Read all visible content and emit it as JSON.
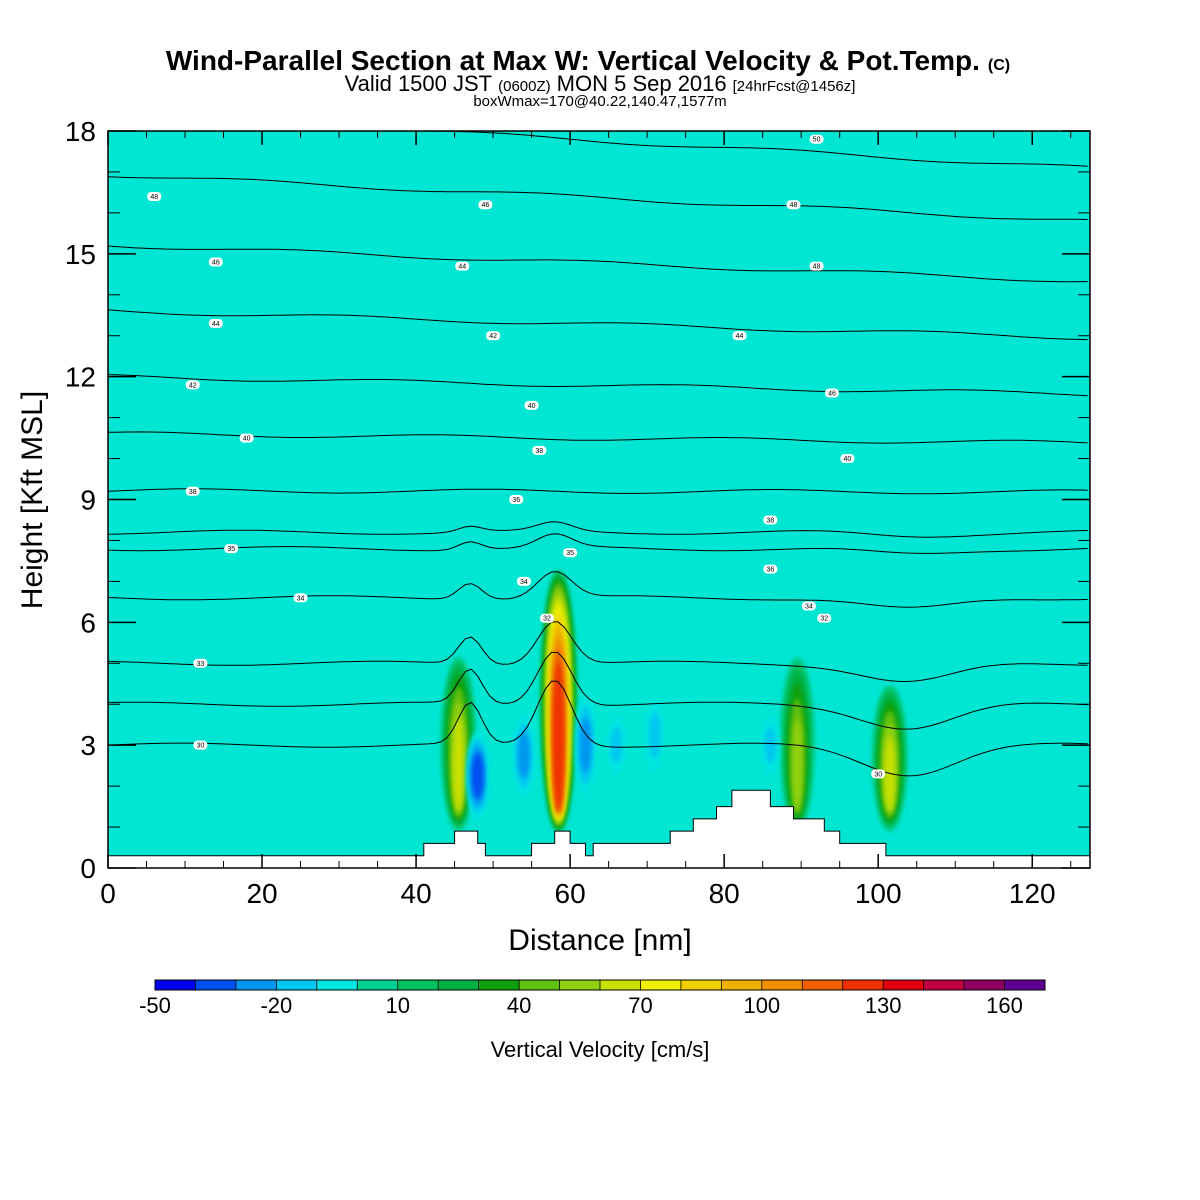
{
  "titles": {
    "main": "Wind-Parallel Section at Max W: Vertical Velocity & Pot.Temp.",
    "main_units": "(C)",
    "valid_prefix": "Valid 1500 JST",
    "valid_z": "(0600Z)",
    "valid_date": "MON 5 Sep 2016",
    "valid_fcst": "[24hrFcst@1456z]",
    "box": "boxWmax=170@40.22,140.47,1577m"
  },
  "chart_data": {
    "type": "heatmap",
    "xlabel": "Distance [nm]",
    "ylabel": "Height [Kft MSL]",
    "xlim": [
      0,
      127.5
    ],
    "ylim": [
      0,
      18
    ],
    "x_ticks": [
      0,
      20,
      40,
      60,
      80,
      100,
      120
    ],
    "y_ticks": [
      0,
      3,
      6,
      9,
      12,
      15,
      18
    ],
    "background_value_cm_s": 0,
    "updraft_columns": [
      {
        "x": 45.5,
        "top_kft": 5.2,
        "max_w": 70
      },
      {
        "x": 58.5,
        "top_kft": 7.3,
        "max_w": 130
      },
      {
        "x": 89.5,
        "top_kft": 5.2,
        "max_w": 60
      },
      {
        "x": 101.5,
        "top_kft": 4.5,
        "max_w": 70
      }
    ],
    "downdraft_columns": [
      {
        "x": 48,
        "bottom_kft": 1.0,
        "top_kft": 3.5,
        "min_w": -40
      },
      {
        "x": 54,
        "bottom_kft": 1.5,
        "top_kft": 4.0,
        "min_w": -30
      },
      {
        "x": 62,
        "bottom_kft": 1.5,
        "top_kft": 4.5,
        "min_w": -30
      },
      {
        "x": 66,
        "bottom_kft": 2.0,
        "top_kft": 4.0,
        "min_w": -20
      },
      {
        "x": 71,
        "bottom_kft": 2.0,
        "top_kft": 4.5,
        "min_w": -20
      },
      {
        "x": 86,
        "bottom_kft": 2.0,
        "top_kft": 4.0,
        "min_w": -20
      }
    ],
    "terrain_kft": [
      [
        0,
        0.3
      ],
      [
        41,
        0.3
      ],
      [
        41,
        0.6
      ],
      [
        45,
        0.6
      ],
      [
        45,
        0.9
      ],
      [
        48,
        0.9
      ],
      [
        48,
        0.6
      ],
      [
        49,
        0.6
      ],
      [
        49,
        0.3
      ],
      [
        55,
        0.3
      ],
      [
        55,
        0.6
      ],
      [
        58,
        0.6
      ],
      [
        58,
        0.9
      ],
      [
        60,
        0.9
      ],
      [
        60,
        0.6
      ],
      [
        62,
        0.6
      ],
      [
        62,
        0.3
      ],
      [
        63,
        0.3
      ],
      [
        63,
        0.6
      ],
      [
        73,
        0.6
      ],
      [
        73,
        0.9
      ],
      [
        76,
        0.9
      ],
      [
        76,
        1.2
      ],
      [
        79,
        1.2
      ],
      [
        79,
        1.5
      ],
      [
        81,
        1.5
      ],
      [
        81,
        1.9
      ],
      [
        86,
        1.9
      ],
      [
        86,
        1.5
      ],
      [
        89,
        1.5
      ],
      [
        89,
        1.2
      ],
      [
        93,
        1.2
      ],
      [
        93,
        0.9
      ],
      [
        95,
        0.9
      ],
      [
        95,
        0.6
      ],
      [
        101,
        0.6
      ],
      [
        101,
        0.3
      ],
      [
        127.5,
        0.3
      ]
    ],
    "theta_contours": [
      {
        "label": "30",
        "base_kft": 3.0,
        "label_x": 12
      },
      {
        "label": "32",
        "base_kft": 4.0
      },
      {
        "label": "33",
        "base_kft": 5.0,
        "label_x": 12
      },
      {
        "label": "34",
        "base_kft": 6.6,
        "label_x": 25
      },
      {
        "label": "35",
        "base_kft": 7.8,
        "label_x": 16
      },
      {
        "label": "36",
        "base_kft": 8.2
      },
      {
        "label": "38",
        "base_kft": 9.2,
        "label_x": 11
      },
      {
        "label": "40",
        "base_kft": 10.5,
        "label_x": 18
      },
      {
        "label": "42",
        "base_kft": 11.8,
        "label_x": 11
      },
      {
        "label": "44",
        "base_kft": 13.3,
        "label_x": 14
      },
      {
        "label": "46",
        "base_kft": 14.8,
        "label_x": 14
      },
      {
        "label": "48",
        "base_kft": 16.4,
        "label_x": 6
      },
      {
        "label": "50",
        "base_kft": 17.8,
        "label_x": 92
      }
    ],
    "theta_labels_interior": [
      {
        "label": "32",
        "x": 57,
        "y": 6.1
      },
      {
        "label": "34",
        "x": 54,
        "y": 7.0
      },
      {
        "label": "35",
        "x": 60,
        "y": 7.7
      },
      {
        "label": "36",
        "x": 53,
        "y": 9.0
      },
      {
        "label": "38",
        "x": 56,
        "y": 10.2
      },
      {
        "label": "40",
        "x": 55,
        "y": 11.3
      },
      {
        "label": "42",
        "x": 50,
        "y": 13.0
      },
      {
        "label": "44",
        "x": 46,
        "y": 14.7
      },
      {
        "label": "46",
        "x": 49,
        "y": 16.2
      },
      {
        "label": "48",
        "x": 89,
        "y": 16.2
      },
      {
        "label": "48",
        "x": 92,
        "y": 14.7
      },
      {
        "label": "44",
        "x": 82,
        "y": 13.0
      },
      {
        "label": "46",
        "x": 94,
        "y": 11.6
      },
      {
        "label": "40",
        "x": 96,
        "y": 10.0
      },
      {
        "label": "38",
        "x": 86,
        "y": 8.5
      },
      {
        "label": "36",
        "x": 86,
        "y": 7.3
      },
      {
        "label": "34",
        "x": 91,
        "y": 6.4
      },
      {
        "label": "32",
        "x": 93,
        "y": 6.1
      },
      {
        "label": "30",
        "x": 100,
        "y": 2.3
      }
    ],
    "colorbar": {
      "label": "Vertical Velocity [cm/s]",
      "tick_labels": [
        "-50",
        "-20",
        "10",
        "40",
        "70",
        "100",
        "130",
        "160"
      ],
      "tick_values": [
        -50,
        -20,
        10,
        40,
        70,
        100,
        130,
        160
      ],
      "min": -50,
      "max": 170,
      "step": 10,
      "colors": [
        "#0000f0",
        "#0050f0",
        "#0096f0",
        "#00c8f0",
        "#00e6e0",
        "#00d090",
        "#00c060",
        "#00b040",
        "#10a010",
        "#60c010",
        "#90d010",
        "#c8e000",
        "#f0f000",
        "#f0d000",
        "#f0b000",
        "#f09000",
        "#f06000",
        "#f03000",
        "#e00010",
        "#c00040",
        "#900060",
        "#600090"
      ]
    }
  }
}
